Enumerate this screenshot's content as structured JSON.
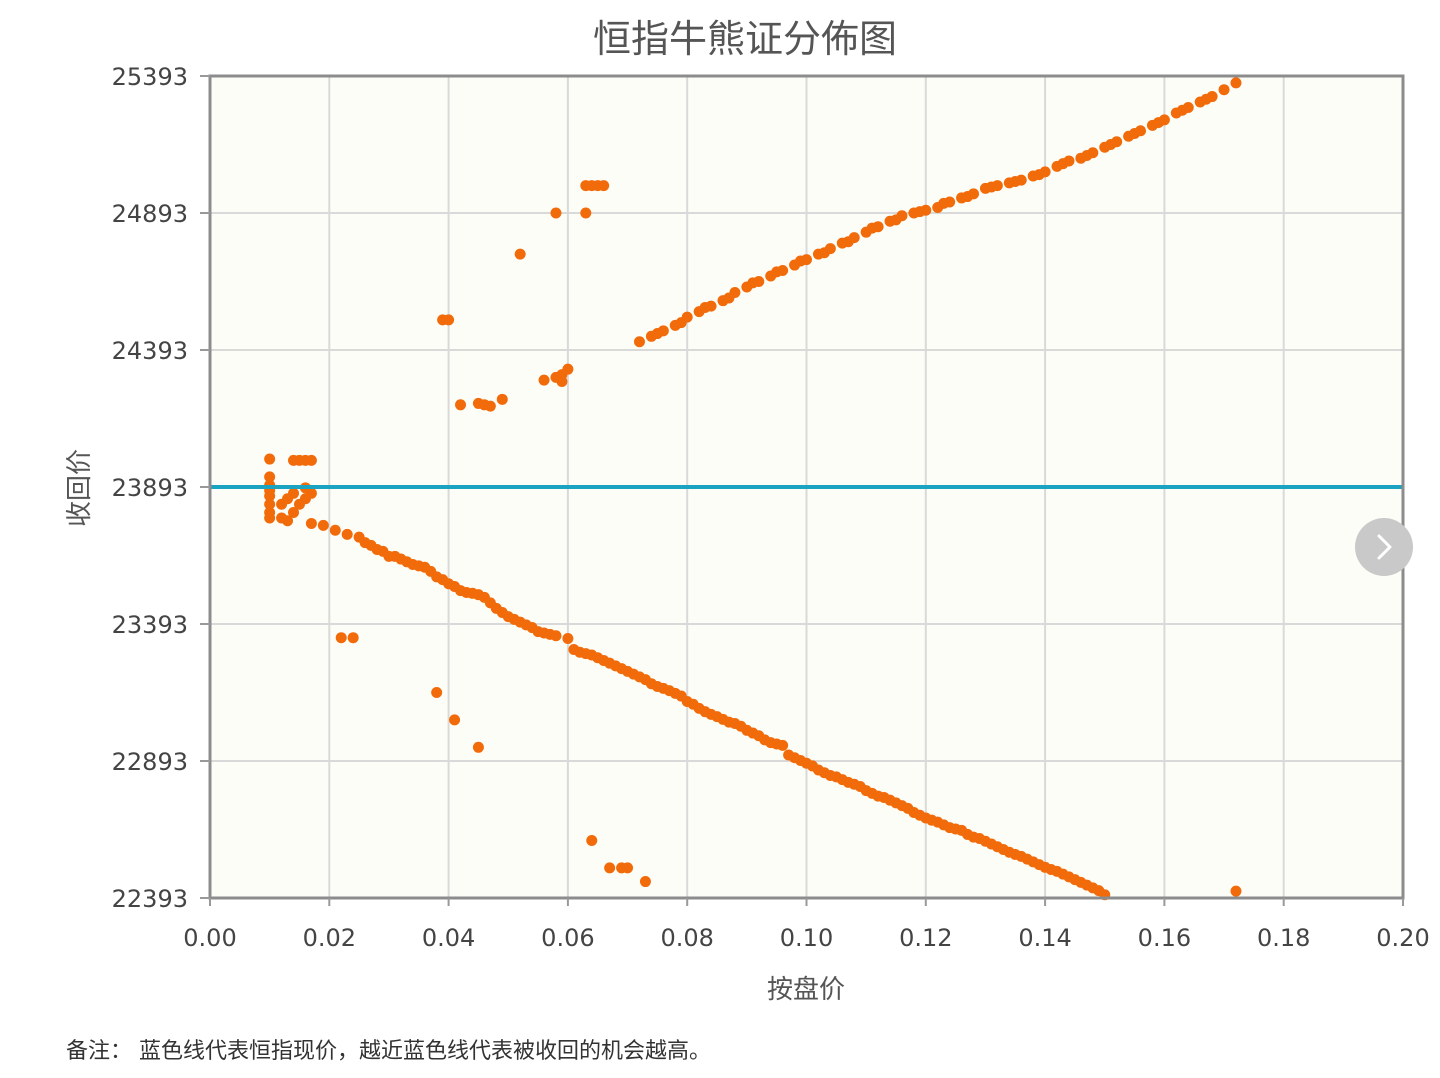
{
  "chart_data": {
    "type": "scatter",
    "title": "恒指牛熊证分佈图",
    "xlabel": "按盘价",
    "ylabel": "收回价",
    "xlim": [
      0,
      0.2
    ],
    "ylim": [
      22393,
      25393
    ],
    "xticks": [
      "0.00",
      "0.02",
      "0.04",
      "0.06",
      "0.08",
      "0.10",
      "0.12",
      "0.14",
      "0.16",
      "0.18",
      "0.20"
    ],
    "yticks": [
      "22393",
      "22893",
      "23393",
      "23893",
      "24393",
      "24893",
      "25393"
    ],
    "grid": true,
    "reference_line": {
      "y": 23893,
      "color": "#1ba3c2"
    },
    "point_color": "#f26b0a",
    "plot_background": "#fdfdf7",
    "bull_points": [
      [
        0.01,
        23780
      ],
      [
        0.01,
        23800
      ],
      [
        0.01,
        23830
      ],
      [
        0.01,
        23860
      ],
      [
        0.01,
        23880
      ],
      [
        0.01,
        23900
      ],
      [
        0.01,
        23930
      ],
      [
        0.01,
        23995
      ],
      [
        0.012,
        23780
      ],
      [
        0.012,
        23830
      ],
      [
        0.013,
        23770
      ],
      [
        0.013,
        23850
      ],
      [
        0.014,
        23800
      ],
      [
        0.014,
        23870
      ],
      [
        0.015,
        23830
      ],
      [
        0.016,
        23850
      ],
      [
        0.016,
        23890
      ],
      [
        0.017,
        23870
      ],
      [
        0.014,
        23990
      ],
      [
        0.015,
        23990
      ],
      [
        0.016,
        23990
      ],
      [
        0.017,
        23990
      ],
      [
        0.022,
        23343
      ],
      [
        0.024,
        23343
      ],
      [
        0.038,
        23143
      ],
      [
        0.041,
        23043
      ],
      [
        0.045,
        22943
      ],
      [
        0.064,
        22603
      ],
      [
        0.067,
        22503
      ],
      [
        0.069,
        22503
      ],
      [
        0.07,
        22503
      ],
      [
        0.073,
        22453
      ],
      [
        0.172,
        22418
      ],
      [
        0.017,
        23760
      ],
      [
        0.019,
        23753
      ],
      [
        0.021,
        23735
      ],
      [
        0.023,
        23720
      ],
      [
        0.025,
        23710
      ],
      [
        0.026,
        23690
      ],
      [
        0.027,
        23680
      ],
      [
        0.028,
        23665
      ],
      [
        0.029,
        23658
      ],
      [
        0.03,
        23640
      ],
      [
        0.031,
        23640
      ],
      [
        0.032,
        23630
      ],
      [
        0.033,
        23620
      ],
      [
        0.034,
        23610
      ],
      [
        0.035,
        23605
      ],
      [
        0.036,
        23600
      ],
      [
        0.037,
        23585
      ],
      [
        0.038,
        23565
      ],
      [
        0.039,
        23555
      ],
      [
        0.04,
        23540
      ],
      [
        0.041,
        23530
      ],
      [
        0.042,
        23515
      ],
      [
        0.043,
        23508
      ],
      [
        0.044,
        23505
      ],
      [
        0.045,
        23500
      ],
      [
        0.046,
        23490
      ],
      [
        0.047,
        23470
      ],
      [
        0.048,
        23450
      ],
      [
        0.049,
        23435
      ],
      [
        0.05,
        23420
      ],
      [
        0.051,
        23410
      ],
      [
        0.052,
        23400
      ],
      [
        0.053,
        23390
      ],
      [
        0.054,
        23380
      ],
      [
        0.055,
        23365
      ],
      [
        0.056,
        23360
      ],
      [
        0.057,
        23355
      ],
      [
        0.058,
        23350
      ],
      [
        0.06,
        23340
      ],
      [
        0.061,
        23300
      ],
      [
        0.062,
        23290
      ],
      [
        0.063,
        23285
      ],
      [
        0.064,
        23280
      ],
      [
        0.065,
        23270
      ],
      [
        0.066,
        23260
      ],
      [
        0.067,
        23250
      ],
      [
        0.068,
        23240
      ],
      [
        0.069,
        23230
      ],
      [
        0.07,
        23220
      ],
      [
        0.071,
        23210
      ],
      [
        0.072,
        23200
      ],
      [
        0.073,
        23190
      ],
      [
        0.074,
        23175
      ],
      [
        0.075,
        23165
      ],
      [
        0.076,
        23158
      ],
      [
        0.077,
        23150
      ],
      [
        0.078,
        23140
      ],
      [
        0.079,
        23130
      ],
      [
        0.08,
        23110
      ],
      [
        0.081,
        23100
      ],
      [
        0.082,
        23085
      ],
      [
        0.083,
        23073
      ],
      [
        0.084,
        23063
      ],
      [
        0.085,
        23055
      ],
      [
        0.086,
        23045
      ],
      [
        0.087,
        23035
      ],
      [
        0.088,
        23030
      ],
      [
        0.089,
        23020
      ],
      [
        0.09,
        23005
      ],
      [
        0.091,
        22995
      ],
      [
        0.092,
        22985
      ],
      [
        0.093,
        22970
      ],
      [
        0.094,
        22960
      ],
      [
        0.095,
        22955
      ],
      [
        0.096,
        22950
      ],
      [
        0.097,
        22915
      ],
      [
        0.098,
        22905
      ],
      [
        0.099,
        22895
      ],
      [
        0.1,
        22885
      ],
      [
        0.101,
        22875
      ],
      [
        0.102,
        22860
      ],
      [
        0.103,
        22850
      ],
      [
        0.104,
        22840
      ],
      [
        0.105,
        22835
      ],
      [
        0.106,
        22825
      ],
      [
        0.107,
        22815
      ],
      [
        0.108,
        22808
      ],
      [
        0.109,
        22800
      ],
      [
        0.11,
        22785
      ],
      [
        0.111,
        22775
      ],
      [
        0.112,
        22765
      ],
      [
        0.113,
        22760
      ],
      [
        0.114,
        22750
      ],
      [
        0.115,
        22740
      ],
      [
        0.116,
        22730
      ],
      [
        0.117,
        22720
      ],
      [
        0.118,
        22705
      ],
      [
        0.119,
        22695
      ],
      [
        0.12,
        22685
      ],
      [
        0.121,
        22677
      ],
      [
        0.122,
        22670
      ],
      [
        0.123,
        22660
      ],
      [
        0.124,
        22650
      ],
      [
        0.125,
        22645
      ],
      [
        0.126,
        22640
      ],
      [
        0.127,
        22625
      ],
      [
        0.128,
        22615
      ],
      [
        0.129,
        22610
      ],
      [
        0.13,
        22600
      ],
      [
        0.131,
        22590
      ],
      [
        0.132,
        22580
      ],
      [
        0.133,
        22570
      ],
      [
        0.134,
        22560
      ],
      [
        0.135,
        22552
      ],
      [
        0.136,
        22545
      ],
      [
        0.137,
        22535
      ],
      [
        0.138,
        22525
      ],
      [
        0.139,
        22515
      ],
      [
        0.14,
        22505
      ],
      [
        0.141,
        22497
      ],
      [
        0.142,
        22490
      ],
      [
        0.143,
        22480
      ],
      [
        0.144,
        22470
      ],
      [
        0.145,
        22460
      ],
      [
        0.146,
        22450
      ],
      [
        0.147,
        22440
      ],
      [
        0.148,
        22430
      ],
      [
        0.149,
        22420
      ],
      [
        0.15,
        22405
      ]
    ],
    "bear_points": [
      [
        0.039,
        24503
      ],
      [
        0.04,
        24503
      ],
      [
        0.042,
        24193
      ],
      [
        0.045,
        24198
      ],
      [
        0.046,
        24193
      ],
      [
        0.047,
        24188
      ],
      [
        0.049,
        24213
      ],
      [
        0.052,
        24743
      ],
      [
        0.056,
        24283
      ],
      [
        0.058,
        24293
      ],
      [
        0.059,
        24278
      ],
      [
        0.059,
        24303
      ],
      [
        0.06,
        24323
      ],
      [
        0.058,
        24893
      ],
      [
        0.063,
        24893
      ],
      [
        0.063,
        24993
      ],
      [
        0.064,
        24993
      ],
      [
        0.065,
        24993
      ],
      [
        0.066,
        24993
      ],
      [
        0.072,
        24423
      ],
      [
        0.074,
        24443
      ],
      [
        0.076,
        24463
      ],
      [
        0.078,
        24483
      ],
      [
        0.08,
        24513
      ],
      [
        0.082,
        24533
      ],
      [
        0.084,
        24553
      ],
      [
        0.086,
        24573
      ],
      [
        0.088,
        24603
      ],
      [
        0.09,
        24623
      ],
      [
        0.092,
        24643
      ],
      [
        0.094,
        24663
      ],
      [
        0.096,
        24683
      ],
      [
        0.098,
        24703
      ],
      [
        0.1,
        24723
      ],
      [
        0.102,
        24743
      ],
      [
        0.104,
        24763
      ],
      [
        0.106,
        24783
      ],
      [
        0.108,
        24803
      ],
      [
        0.11,
        24823
      ],
      [
        0.112,
        24843
      ],
      [
        0.114,
        24863
      ],
      [
        0.116,
        24883
      ],
      [
        0.118,
        24893
      ],
      [
        0.12,
        24903
      ],
      [
        0.122,
        24913
      ],
      [
        0.124,
        24933
      ],
      [
        0.126,
        24948
      ],
      [
        0.128,
        24963
      ],
      [
        0.13,
        24983
      ],
      [
        0.132,
        24993
      ],
      [
        0.134,
        25003
      ],
      [
        0.136,
        25013
      ],
      [
        0.138,
        25028
      ],
      [
        0.14,
        25043
      ],
      [
        0.142,
        25063
      ],
      [
        0.144,
        25083
      ],
      [
        0.146,
        25093
      ],
      [
        0.148,
        25113
      ],
      [
        0.15,
        25133
      ],
      [
        0.152,
        25153
      ],
      [
        0.154,
        25173
      ],
      [
        0.156,
        25193
      ],
      [
        0.158,
        25213
      ],
      [
        0.16,
        25233
      ],
      [
        0.162,
        25258
      ],
      [
        0.164,
        25278
      ],
      [
        0.166,
        25298
      ],
      [
        0.168,
        25318
      ],
      [
        0.17,
        25343
      ],
      [
        0.172,
        25368
      ],
      [
        0.075,
        24453
      ],
      [
        0.079,
        24493
      ],
      [
        0.083,
        24548
      ],
      [
        0.087,
        24583
      ],
      [
        0.091,
        24638
      ],
      [
        0.095,
        24678
      ],
      [
        0.099,
        24718
      ],
      [
        0.103,
        24748
      ],
      [
        0.107,
        24788
      ],
      [
        0.111,
        24838
      ],
      [
        0.115,
        24868
      ],
      [
        0.119,
        24898
      ],
      [
        0.123,
        24928
      ],
      [
        0.127,
        24953
      ],
      [
        0.131,
        24988
      ],
      [
        0.135,
        25008
      ],
      [
        0.139,
        25033
      ],
      [
        0.143,
        25073
      ],
      [
        0.147,
        25103
      ],
      [
        0.151,
        25143
      ],
      [
        0.155,
        25183
      ],
      [
        0.159,
        25223
      ],
      [
        0.163,
        25268
      ],
      [
        0.167,
        25308
      ]
    ]
  },
  "note": "备注：  蓝色线代表恒指现价，越近蓝色线代表被收回的机会越高。"
}
